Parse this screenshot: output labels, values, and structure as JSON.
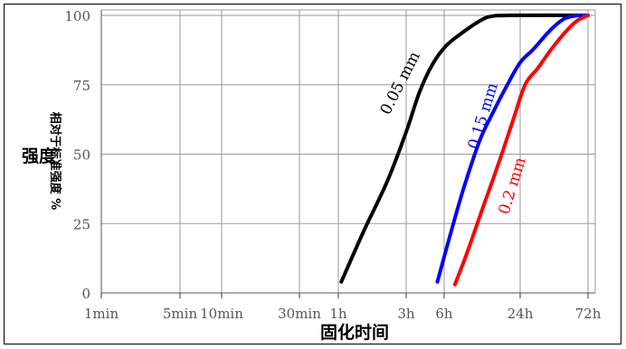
{
  "chart_data": {
    "type": "line",
    "title": "",
    "xlabel": "固化时间",
    "ylabel_main": "强度",
    "ylabel_rotated": "相对于标准强度 %",
    "x_scale": "log",
    "x_ticks": [
      {
        "label": "1min",
        "hours": 0.01667
      },
      {
        "label": "5min",
        "hours": 0.08333
      },
      {
        "label": "10min",
        "hours": 0.16667
      },
      {
        "label": "30min",
        "hours": 0.5
      },
      {
        "label": "1h",
        "hours": 1
      },
      {
        "label": "3h",
        "hours": 3
      },
      {
        "label": "6h",
        "hours": 6
      },
      {
        "label": "24h",
        "hours": 24
      },
      {
        "label": "72h",
        "hours": 72
      }
    ],
    "y_ticks": [
      0,
      25,
      50,
      75,
      100
    ],
    "xlim_hours": [
      0.01667,
      72
    ],
    "ylim": [
      0,
      100
    ],
    "grid": true,
    "series": [
      {
        "name": "0.05 mm",
        "color": "#000000",
        "points": [
          [
            1.05,
            4
          ],
          [
            1.5,
            22
          ],
          [
            2.2,
            40
          ],
          [
            3.0,
            58
          ],
          [
            3.8,
            72
          ],
          [
            4.8,
            82
          ],
          [
            6.2,
            89
          ],
          [
            8.5,
            94
          ],
          [
            11.5,
            98
          ],
          [
            14,
            99.6
          ],
          [
            20,
            100
          ],
          [
            72,
            100
          ]
        ]
      },
      {
        "name": "0.15 mm",
        "color": "#0000ff",
        "points": [
          [
            5.3,
            4
          ],
          [
            6.8,
            22
          ],
          [
            8.6,
            38
          ],
          [
            11.5,
            55
          ],
          [
            15,
            66
          ],
          [
            19,
            75
          ],
          [
            24,
            83
          ],
          [
            30,
            88
          ],
          [
            38,
            94
          ],
          [
            48,
            98.5
          ],
          [
            58,
            99.8
          ],
          [
            72,
            100
          ]
        ]
      },
      {
        "name": "0.2 mm",
        "color": "#ff0000",
        "points": [
          [
            7.3,
            3
          ],
          [
            9.2,
            15
          ],
          [
            12,
            30
          ],
          [
            16,
            46
          ],
          [
            21,
            62
          ],
          [
            26,
            75
          ],
          [
            32,
            81
          ],
          [
            40,
            88
          ],
          [
            50,
            94
          ],
          [
            60,
            98
          ],
          [
            72,
            100
          ]
        ]
      }
    ]
  }
}
